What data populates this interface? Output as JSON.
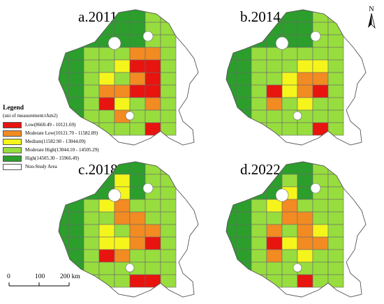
{
  "panels": [
    {
      "id": "a",
      "title": "a.2011"
    },
    {
      "id": "b",
      "title": "b.2014"
    },
    {
      "id": "c",
      "title": "c.2018"
    },
    {
      "id": "d",
      "title": "d.2022"
    }
  ],
  "legend": {
    "title": "Legend",
    "subtitle": "(uni of measurement:t/km2)",
    "items": [
      {
        "key": "low",
        "label": "Low(8660.49 - 10121.69)",
        "color": "#e8140f"
      },
      {
        "key": "mlow",
        "label": "Moderate Low(10121.70 - 11582.89)",
        "color": "#f28b22"
      },
      {
        "key": "medium",
        "label": "Medium(11582.90 - 13044.09)",
        "color": "#f5f51c"
      },
      {
        "key": "mhigh",
        "label": "Moderate High(13044.10 - 14505.29)",
        "color": "#97dd3e"
      },
      {
        "key": "high",
        "label": "High(14505.30 - 15966.49)",
        "color": "#2c9e2c"
      },
      {
        "key": "nsa",
        "label": "Non-Study Area",
        "color": "#ffffff"
      }
    ]
  },
  "north_arrow": {
    "label": "N"
  },
  "scale_bar": {
    "ticks": [
      "0",
      "100",
      "200 km"
    ]
  }
}
